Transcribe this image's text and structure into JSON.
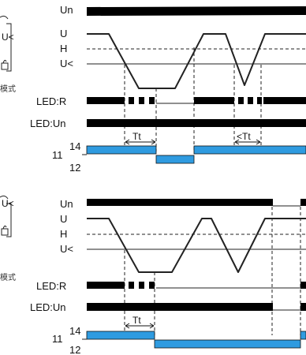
{
  "left_labels": {
    "upper_u_lt": "U<",
    "upper_mode": "模式",
    "lower_u_lt": "U<",
    "lower_mode": "模式"
  },
  "upper": {
    "un": "Un",
    "u": "U",
    "h": "H",
    "u_lt": "U<",
    "led_r": "LED:R",
    "led_un": "LED:Un",
    "relay_14": "14",
    "relay_11": "11",
    "relay_12": "12",
    "tt": "Tt",
    "lt_tt": "<Tt"
  },
  "lower": {
    "un": "Un",
    "u": "U",
    "h": "H",
    "u_lt": "U<",
    "led_r": "LED:R",
    "led_un": "LED:Un",
    "relay_14": "14",
    "relay_11": "11",
    "relay_12": "12",
    "tt": "Tt"
  },
  "colors": {
    "relay_fill": "#2f9be0",
    "bar": "#000000"
  }
}
